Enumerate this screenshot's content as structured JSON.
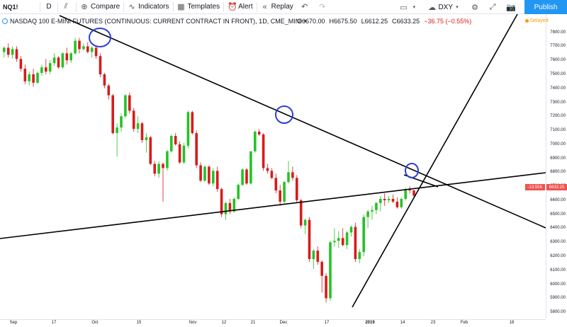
{
  "toolbar": {
    "symbol": "NQ1!",
    "interval": "D",
    "compare_label": "Compare",
    "indicators_label": "Indicators",
    "templates_label": "Templates",
    "alert_label": "Alert",
    "replay_label": "Replay",
    "compare_symbol": "DXY",
    "publish_label": "Publish"
  },
  "legend": {
    "title": "NASDAQ 100 E-MINI FUTURES (CONTINUOUS: CURRENT CONTRACT IN FRONT), 1D, CME_MINI",
    "open": "O6670.00",
    "high": "H6675.50",
    "low": "L6612.25",
    "close": "C6633.25",
    "change": "−36.75 (−0.55%)",
    "delayed_label": "Delayed"
  },
  "price_tags": {
    "last_price": "6633.25",
    "change_pct": "-13.55K"
  },
  "colors": {
    "up": "#26c226",
    "down": "#d81b1b",
    "accent": "#2196f3",
    "circle": "#2f3fd8",
    "trendline": "#000000"
  },
  "chart_data": {
    "type": "candlestick",
    "symbol": "NQ1!",
    "interval": "1D",
    "ylim": [
      5750,
      7930
    ],
    "price_ticks": [
      5800,
      5900,
      6000,
      6100,
      6200,
      6300,
      6400,
      6500,
      6600,
      6700,
      6800,
      6900,
      7000,
      7100,
      7200,
      7300,
      7400,
      7500,
      7600,
      7700,
      7800
    ],
    "time_ticks": [
      "Sep",
      "17",
      "Oct",
      "15",
      "Nov",
      "12",
      "21",
      "Dec",
      "17",
      "2019",
      "14",
      "23",
      "Feb",
      "18"
    ],
    "candles": [
      [
        7660,
        7700,
        7620,
        7690
      ],
      [
        7690,
        7720,
        7620,
        7640
      ],
      [
        7640,
        7700,
        7610,
        7680
      ],
      [
        7680,
        7700,
        7590,
        7610
      ],
      [
        7610,
        7630,
        7520,
        7540
      ],
      [
        7540,
        7570,
        7430,
        7450
      ],
      [
        7450,
        7520,
        7420,
        7500
      ],
      [
        7500,
        7540,
        7410,
        7440
      ],
      [
        7440,
        7520,
        7430,
        7510
      ],
      [
        7510,
        7570,
        7490,
        7550
      ],
      [
        7550,
        7610,
        7500,
        7520
      ],
      [
        7520,
        7600,
        7500,
        7580
      ],
      [
        7580,
        7650,
        7560,
        7620
      ],
      [
        7620,
        7630,
        7540,
        7550
      ],
      [
        7550,
        7660,
        7540,
        7650
      ],
      [
        7650,
        7690,
        7570,
        7600
      ],
      [
        7600,
        7660,
        7580,
        7650
      ],
      [
        7650,
        7760,
        7640,
        7740
      ],
      [
        7740,
        7760,
        7650,
        7680
      ],
      [
        7680,
        7720,
        7670,
        7700
      ],
      [
        7700,
        7730,
        7650,
        7660
      ],
      [
        7660,
        7700,
        7620,
        7690
      ],
      [
        7690,
        7700,
        7610,
        7630
      ],
      [
        7630,
        7650,
        7480,
        7500
      ],
      [
        7500,
        7510,
        7400,
        7420
      ],
      [
        7420,
        7430,
        7320,
        7350
      ],
      [
        7350,
        7360,
        7070,
        7080
      ],
      [
        7080,
        7150,
        6910,
        7120
      ],
      [
        7120,
        7220,
        7090,
        7200
      ],
      [
        7200,
        7360,
        7190,
        7350
      ],
      [
        7350,
        7370,
        7220,
        7240
      ],
      [
        7240,
        7260,
        7090,
        7110
      ],
      [
        7110,
        7200,
        7080,
        7150
      ],
      [
        7150,
        7160,
        7010,
        7030
      ],
      [
        7030,
        7080,
        6940,
        7050
      ],
      [
        7050,
        7060,
        6850,
        6860
      ],
      [
        6860,
        6880,
        6770,
        6790
      ],
      [
        6790,
        6880,
        6760,
        6860
      ],
      [
        6860,
        6870,
        6590,
        6830
      ],
      [
        6830,
        6960,
        6810,
        6950
      ],
      [
        6950,
        7070,
        6940,
        7060
      ],
      [
        7060,
        7080,
        6990,
        7000
      ],
      [
        7000,
        7020,
        6860,
        6870
      ],
      [
        6870,
        7010,
        6860,
        6990
      ],
      [
        6990,
        7240,
        6970,
        7230
      ],
      [
        7230,
        7240,
        7070,
        7080
      ],
      [
        7080,
        7100,
        6830,
        6850
      ],
      [
        6850,
        6870,
        6730,
        6740
      ],
      [
        6740,
        6850,
        6730,
        6840
      ],
      [
        6840,
        6850,
        6710,
        6720
      ],
      [
        6720,
        6830,
        6700,
        6810
      ],
      [
        6810,
        6840,
        6660,
        6680
      ],
      [
        6680,
        6690,
        6480,
        6500
      ],
      [
        6500,
        6590,
        6460,
        6580
      ],
      [
        6580,
        6610,
        6500,
        6520
      ],
      [
        6520,
        6620,
        6510,
        6610
      ],
      [
        6610,
        6720,
        6600,
        6710
      ],
      [
        6710,
        6830,
        6700,
        6820
      ],
      [
        6820,
        6830,
        6710,
        6720
      ],
      [
        6720,
        6950,
        6710,
        6950
      ],
      [
        6950,
        7100,
        6940,
        7090
      ],
      [
        7090,
        7110,
        7060,
        7070
      ],
      [
        7070,
        7080,
        6810,
        6830
      ],
      [
        6830,
        6860,
        6790,
        6810
      ],
      [
        6810,
        6830,
        6750,
        6760
      ],
      [
        6760,
        6790,
        6650,
        6670
      ],
      [
        6670,
        6710,
        6560,
        6590
      ],
      [
        6590,
        6740,
        6570,
        6730
      ],
      [
        6730,
        6880,
        6720,
        6800
      ],
      [
        6800,
        6840,
        6740,
        6760
      ],
      [
        6760,
        6780,
        6580,
        6600
      ],
      [
        6600,
        6610,
        6400,
        6420
      ],
      [
        6420,
        6470,
        6360,
        6460
      ],
      [
        6460,
        6480,
        6160,
        6180
      ],
      [
        6180,
        6250,
        6110,
        6240
      ],
      [
        6240,
        6270,
        6140,
        6160
      ],
      [
        6160,
        6170,
        5940,
        6060
      ],
      [
        6060,
        6080,
        5870,
        5900
      ],
      [
        5900,
        6310,
        5880,
        6300
      ],
      [
        6300,
        6400,
        6270,
        6310
      ],
      [
        6310,
        6380,
        6260,
        6330
      ],
      [
        6330,
        6400,
        6270,
        6280
      ],
      [
        6280,
        6380,
        6250,
        6370
      ],
      [
        6370,
        6420,
        6340,
        6410
      ],
      [
        6410,
        6440,
        6160,
        6180
      ],
      [
        6180,
        6250,
        6150,
        6230
      ],
      [
        6230,
        6500,
        6200,
        6480
      ],
      [
        6480,
        6530,
        6400,
        6520
      ],
      [
        6520,
        6560,
        6460,
        6530
      ],
      [
        6530,
        6590,
        6500,
        6580
      ],
      [
        6580,
        6630,
        6520,
        6610
      ],
      [
        6610,
        6650,
        6560,
        6600
      ],
      [
        6600,
        6630,
        6580,
        6610
      ],
      [
        6610,
        6640,
        6580,
        6590
      ],
      [
        6590,
        6620,
        6540,
        6550
      ],
      [
        6550,
        6620,
        6540,
        6610
      ],
      [
        6610,
        6690,
        6600,
        6680
      ],
      [
        6680,
        6700,
        6650,
        6670
      ],
      [
        6670,
        6675.5,
        6612.25,
        6633.25
      ]
    ]
  }
}
